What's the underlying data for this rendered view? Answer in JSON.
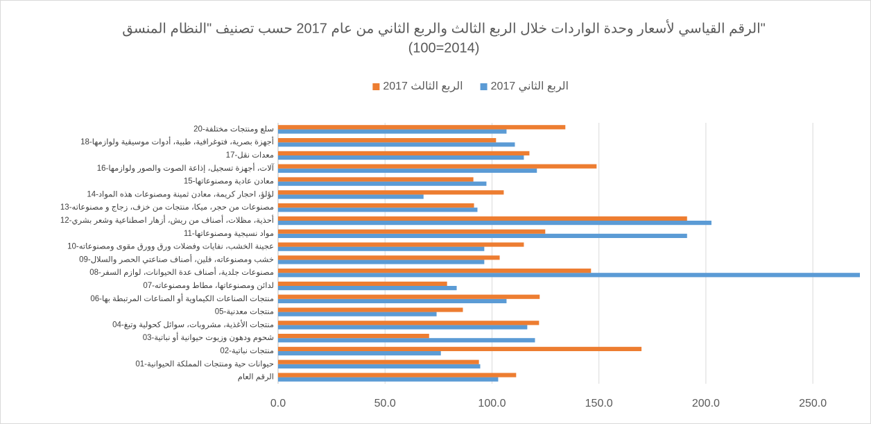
{
  "chart_data": {
    "type": "bar",
    "orientation": "horizontal",
    "title": [
      "الرقم القياسي لأسعار وحدة الواردات خلال الربع الثالث والربع الثاني من عام 2017 حسب تصنيف \"النظام المنسق\"",
      "(100=2014)"
    ],
    "categories": [
      "الرقم العام",
      "01-حيوانات حية ومنتجات المملكة الحيوانية",
      "02-منتجات نباتية",
      "03-شحوم ودهون وزيوت حيوانية أو نباتية",
      "04-منتجات الأغذية، مشروبات، سوائل كحولية وتبغ",
      "05-منتجات معدنية",
      "06-منتجات الصناعات الكيماوية أو الصناعات المرتبطة بها",
      "07-لدائن ومصنوعاتها، مطاط ومصنوعاته",
      "08-مصنوعات جلدية، أصناف عدة الحيوانات، لوازم السفر",
      "09-خشب ومصنوعاته، فلين، أصناف صناعتي الحصر والسلال",
      "10-عجينة الخشب، نفايات وفضلات ورق وورق مقوى ومصنوعاته",
      "11-مواد نسيجية ومصنوعاتها",
      "12-أحذية، مظلات، أصناف من ريش، أزهار اصطناعية وشعر بشري",
      "13-مصنوعات من حجر، ميكا، منتجات من خزف، زجاج و مصنوعاته",
      "14-لؤلؤ، احجار كريمة، معادن ثمينة ومصنوعات هذه المواد",
      "15-معادن عادية ومصنوعاتها",
      "16-آلات، أجهزة تسجيل، إذاعة الصوت والصور ولوازمها",
      "17-معدات نقل",
      "18-أجهزة بصرية، فتوغرافية، طبية، أدوات موسيقية ولوازمها",
      "20-سلع ومنتجات مختلفة"
    ],
    "series": [
      {
        "name": "الربع الثاني 2017",
        "color": "#5b9bd5",
        "values": [
          102.9,
          94.5,
          76.1,
          120.1,
          116.5,
          74.1,
          106.8,
          83.5,
          272,
          96.4,
          96.4,
          191.2,
          202.6,
          93.2,
          68.0,
          97.4,
          121.0,
          114.9,
          110.7,
          106.8
        ]
      },
      {
        "name": "الربع الثالث 2017",
        "color": "#ed7d31",
        "values": [
          111.3,
          93.9,
          169.9,
          70.6,
          122.0,
          86.4,
          122.3,
          79.0,
          146.3,
          103.6,
          114.9,
          124.9,
          191.2,
          91.6,
          105.5,
          91.3,
          148.9,
          117.5,
          101.9,
          134.3
        ]
      }
    ],
    "xlim": [
      0,
      272
    ],
    "xticks": [
      {
        "value": 0,
        "label": "0.0"
      },
      {
        "value": 50,
        "label": "50.0"
      },
      {
        "value": 100,
        "label": "100.0"
      },
      {
        "value": 150,
        "label": "150.0"
      },
      {
        "value": 200,
        "label": "200.0"
      },
      {
        "value": 250,
        "label": "250.0"
      }
    ],
    "grid": true,
    "legend": "top"
  }
}
